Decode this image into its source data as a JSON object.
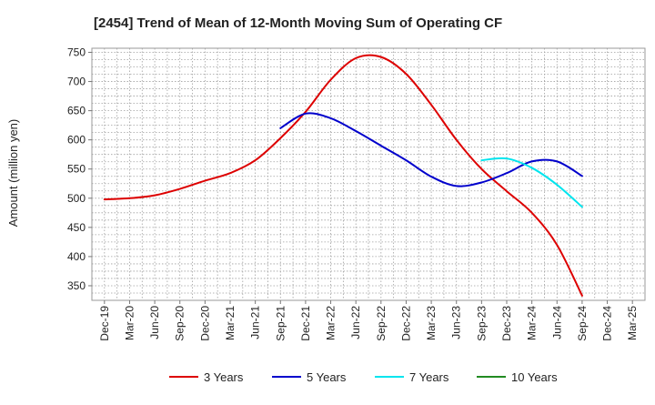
{
  "chart_data": {
    "type": "line",
    "title": "[2454]  Trend of Mean of 12-Month Moving Sum of Operating CF",
    "xlabel": "",
    "ylabel": "Amount (million yen)",
    "ylim": [
      325,
      757
    ],
    "yticks": [
      350,
      400,
      450,
      500,
      550,
      600,
      650,
      700,
      750
    ],
    "categories": [
      "Dec-19",
      "Mar-20",
      "Jun-20",
      "Sep-20",
      "Dec-20",
      "Mar-21",
      "Jun-21",
      "Sep-21",
      "Dec-21",
      "Mar-22",
      "Jun-22",
      "Sep-22",
      "Dec-22",
      "Mar-23",
      "Jun-23",
      "Sep-23",
      "Dec-23",
      "Mar-24",
      "Jun-24",
      "Sep-24",
      "Dec-24",
      "Mar-25"
    ],
    "grid": true,
    "legend_position": "bottom",
    "series": [
      {
        "name": "3 Years",
        "color": "#dd0000",
        "values": [
          498,
          500,
          505,
          516,
          530,
          543,
          565,
          603,
          648,
          703,
          740,
          742,
          713,
          660,
          600,
          550,
          512,
          475,
          420,
          333,
          null,
          null
        ]
      },
      {
        "name": "5 Years",
        "color": "#0000cc",
        "values": [
          null,
          null,
          null,
          null,
          null,
          null,
          null,
          620,
          645,
          637,
          615,
          590,
          565,
          537,
          521,
          527,
          543,
          563,
          563,
          538,
          null,
          null
        ]
      },
      {
        "name": "7 Years",
        "color": "#00e5ee",
        "values": [
          null,
          null,
          null,
          null,
          null,
          null,
          null,
          null,
          null,
          null,
          null,
          null,
          null,
          null,
          null,
          565,
          568,
          552,
          523,
          485,
          null,
          null
        ]
      },
      {
        "name": "10 Years",
        "color": "#228b22",
        "values": [
          null,
          null,
          null,
          null,
          null,
          null,
          null,
          null,
          null,
          null,
          null,
          null,
          null,
          null,
          null,
          null,
          null,
          null,
          null,
          null,
          null,
          null
        ]
      }
    ]
  }
}
